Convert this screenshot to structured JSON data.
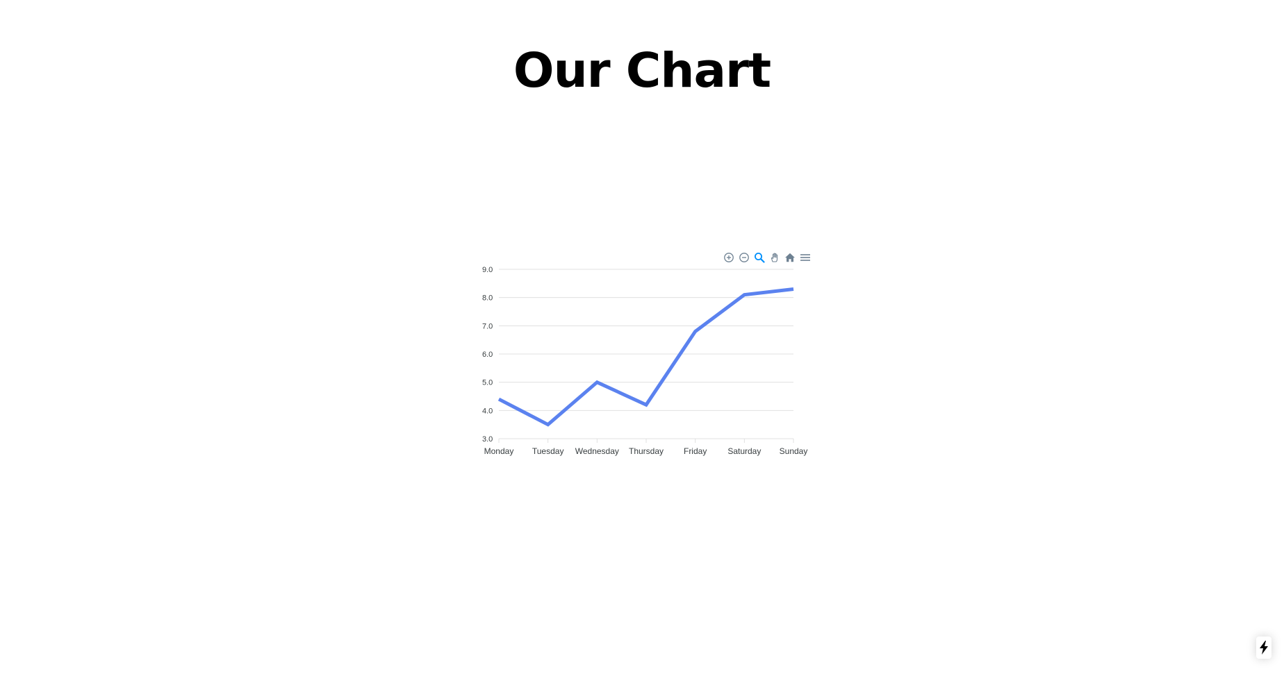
{
  "page": {
    "title": "Our Chart"
  },
  "toolbar": {
    "icons": [
      "zoom-in-icon",
      "zoom-out-icon",
      "selection-zoom-icon",
      "pan-icon",
      "reset-zoom-icon",
      "menu-icon"
    ],
    "active_color": "#008ffb",
    "icon_color": "#6e8192"
  },
  "badge": {
    "icon": "lightning-bolt-icon"
  },
  "chart_data": {
    "type": "line",
    "categories": [
      "Monday",
      "Tuesday",
      "Wednesday",
      "Thursday",
      "Friday",
      "Saturday",
      "Sunday"
    ],
    "series": [
      {
        "values": [
          4.4,
          3.5,
          5.0,
          4.2,
          6.8,
          8.1,
          8.3
        ],
        "color": "#5b82ef"
      }
    ],
    "yticks": [
      "9.0",
      "8.0",
      "7.0",
      "6.0",
      "5.0",
      "4.0",
      "3.0"
    ],
    "ylim": [
      3,
      9
    ],
    "grid": true,
    "title": "",
    "xlabel": "",
    "ylabel": ""
  }
}
